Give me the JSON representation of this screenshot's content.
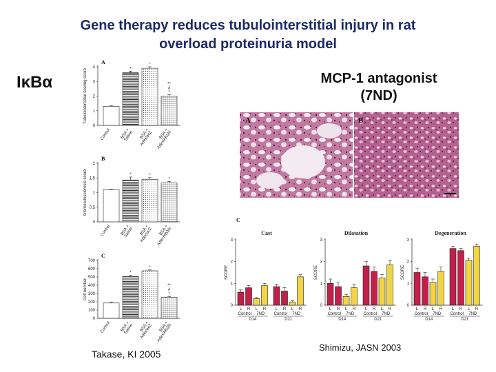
{
  "title_line1": "Gene therapy reduces tubulointerstitial injury in rat",
  "title_line2": "overload proteinuria model",
  "ikb_label": "IκBα",
  "mcp_line1": "MCP-1 antagonist",
  "mcp_line2": "(7ND)",
  "citation_left": "Takase, KI 2005",
  "citation_right": "Shimizu, JASN 2003",
  "chart_data": [
    {
      "type": "bar",
      "panel": "A",
      "ylabel": "Tubulointerstitial scoring score",
      "ylim": [
        0,
        4
      ],
      "yticks": [
        0,
        1,
        2,
        3,
        4
      ],
      "categories": [
        "Control",
        "BSA + Saline",
        "BSA + AdexlacZ",
        "BSA + AdexIkBΔN"
      ],
      "values": [
        1.3,
        3.6,
        3.9,
        2.0
      ],
      "errors": [
        0.05,
        0.1,
        0.1,
        0.1
      ],
      "patterns": [
        "white",
        "hlines",
        "dots",
        "grid"
      ],
      "annotations": [
        "",
        "*",
        "*",
        "* # **"
      ]
    },
    {
      "type": "bar",
      "panel": "B",
      "ylabel": "Glomerulosclerosis score",
      "ylim": [
        0,
        2
      ],
      "yticks": [
        0,
        0.5,
        1,
        1.5,
        2
      ],
      "categories": [
        "Control",
        "BSA + Saline",
        "BSA + AdexlacZ",
        "BSA + AdexIkBΔN"
      ],
      "values": [
        1.1,
        1.43,
        1.45,
        1.33
      ],
      "errors": [
        0.02,
        0.1,
        0.06,
        0.05
      ],
      "patterns": [
        "white",
        "hlines",
        "dots",
        "grid"
      ],
      "annotations": [
        "",
        "*",
        "*",
        "*"
      ]
    },
    {
      "type": "bar",
      "panel": "C",
      "ylabel": "Cell number",
      "ylim": [
        0,
        700
      ],
      "yticks": [
        0,
        100,
        200,
        300,
        400,
        500,
        600,
        700
      ],
      "categories": [
        "Control",
        "BSA + Saline",
        "BSA + AdexlacZ",
        "BSA + AdexIkBΔN"
      ],
      "values": [
        185,
        505,
        575,
        255
      ],
      "errors": [
        8,
        15,
        10,
        10
      ],
      "patterns": [
        "white",
        "hlines",
        "dots",
        "grid"
      ],
      "annotations": [
        "",
        "*",
        "*",
        "* # **"
      ]
    },
    {
      "type": "bar",
      "panel": "Cast",
      "ylabel": "SCORE",
      "ylim": [
        0,
        3
      ],
      "yticks": [
        0,
        1,
        2,
        3
      ],
      "categories": [
        "L",
        "R",
        "L",
        "R",
        "L",
        "R",
        "L",
        "R"
      ],
      "groups": [
        "Control",
        "7ND",
        "Control",
        "7ND"
      ],
      "days": [
        "D14",
        "D21"
      ],
      "values": [
        0.6,
        0.8,
        0.3,
        0.9,
        0.85,
        0.65,
        0.15,
        1.3
      ],
      "errors": [
        0.1,
        0.1,
        0.05,
        0.1,
        0.1,
        0.15,
        0.05,
        0.1
      ],
      "colors": [
        "#c41e4a",
        "#c41e4a",
        "#f2d542",
        "#f2d542",
        "#c41e4a",
        "#c41e4a",
        "#f2d542",
        "#f2d542"
      ]
    },
    {
      "type": "bar",
      "panel": "Dilatation",
      "ylabel": "SCORE",
      "ylim": [
        0,
        3
      ],
      "yticks": [
        0,
        1,
        2,
        3
      ],
      "categories": [
        "L",
        "R",
        "L",
        "R",
        "L",
        "R",
        "L",
        "R"
      ],
      "groups": [
        "Control",
        "7ND",
        "Control",
        "7ND"
      ],
      "days": [
        "D14",
        "D21"
      ],
      "values": [
        1.0,
        0.85,
        0.4,
        0.8,
        1.8,
        1.55,
        1.25,
        1.85
      ],
      "errors": [
        0.2,
        0.2,
        0.1,
        0.15,
        0.2,
        0.2,
        0.15,
        0.2
      ],
      "colors": [
        "#c41e4a",
        "#c41e4a",
        "#f2d542",
        "#f2d542",
        "#c41e4a",
        "#c41e4a",
        "#f2d542",
        "#f2d542"
      ]
    },
    {
      "type": "bar",
      "panel": "Degeneration",
      "ylabel": "SCORE",
      "ylim": [
        0,
        3
      ],
      "yticks": [
        0,
        1,
        2,
        3
      ],
      "categories": [
        "L",
        "R",
        "L",
        "R",
        "L",
        "R",
        "L",
        "R"
      ],
      "groups": [
        "Control",
        "7ND",
        "Control",
        "7ND"
      ],
      "days": [
        "D14",
        "D21"
      ],
      "values": [
        1.5,
        1.3,
        1.05,
        1.55,
        2.6,
        2.5,
        2.05,
        2.7
      ],
      "errors": [
        0.2,
        0.2,
        0.15,
        0.2,
        0.1,
        0.1,
        0.1,
        0.1
      ],
      "colors": [
        "#c41e4a",
        "#c41e4a",
        "#f2d542",
        "#f2d542",
        "#c41e4a",
        "#c41e4a",
        "#f2d542",
        "#f2d542"
      ]
    }
  ],
  "figure_labels": {
    "photo_a": "A",
    "photo_b": "B",
    "panel_c": "C"
  }
}
